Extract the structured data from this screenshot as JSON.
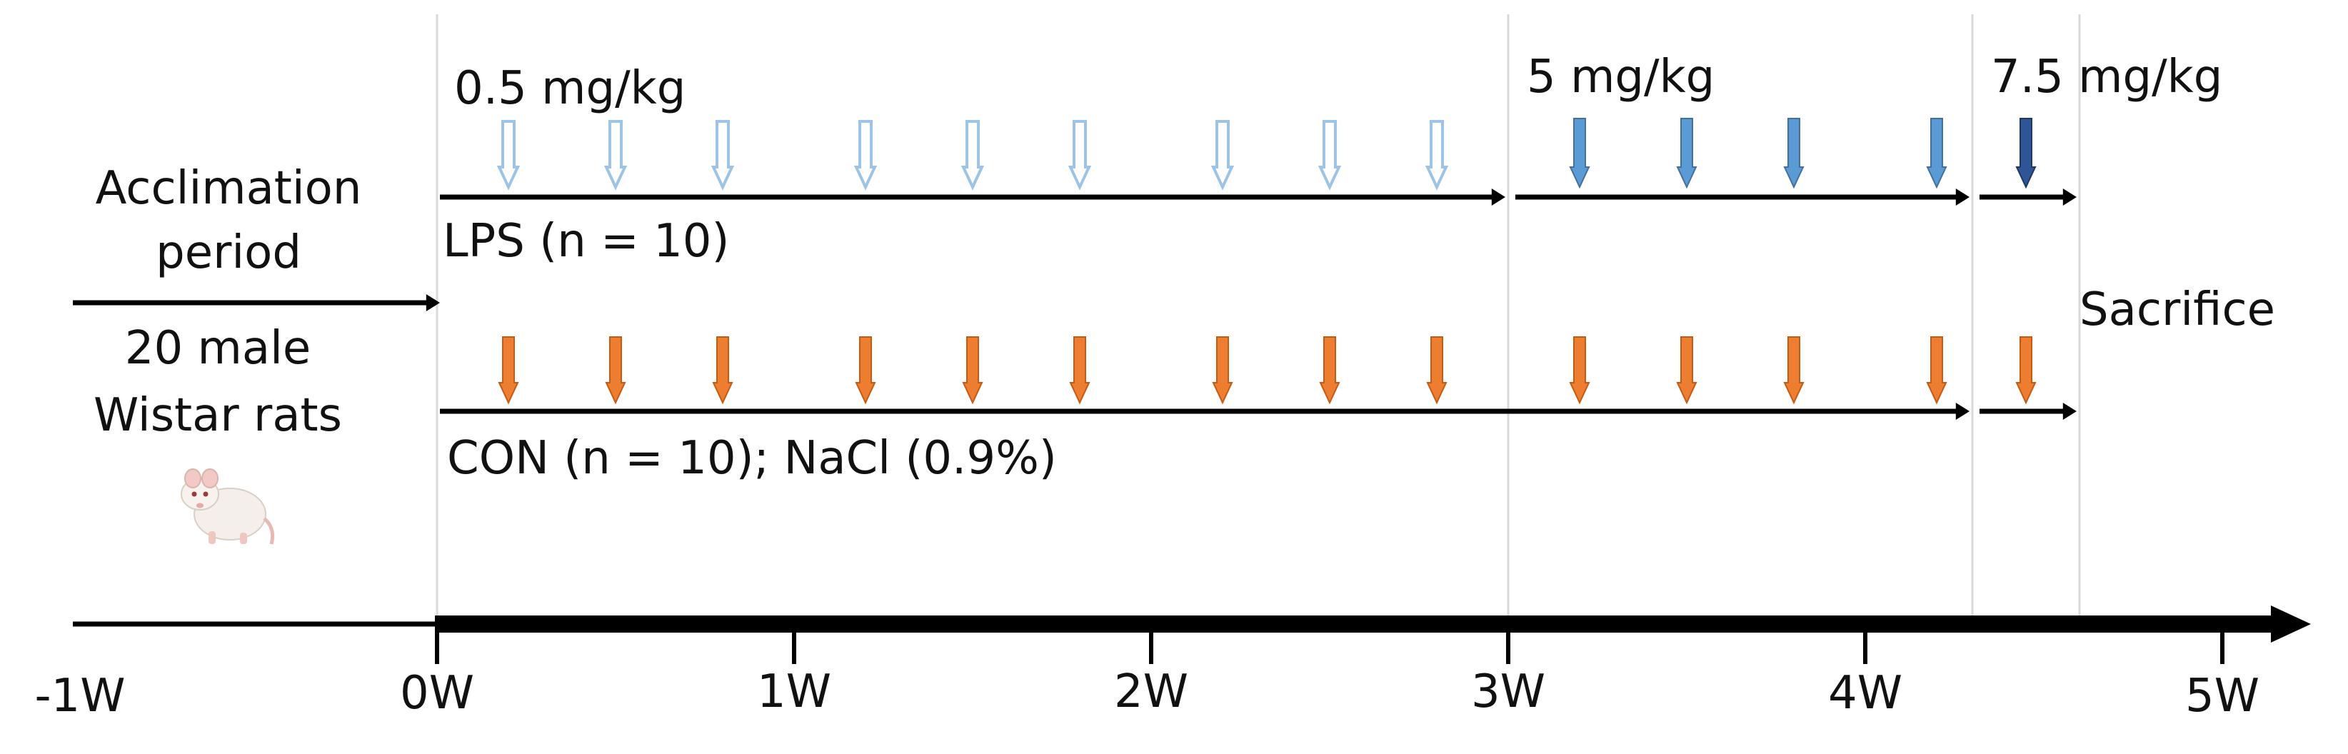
{
  "doses": {
    "low": "0.5 mg/kg",
    "mid": "5 mg/kg",
    "high": "7.5 mg/kg"
  },
  "labels": {
    "acclimation": "Acclimation period",
    "acclimation_line1": "Acclimation",
    "acclimation_line2": "period",
    "animals_line1": "20 male",
    "animals_line2": "Wistar rats",
    "lps_group": "LPS (n = 10)",
    "con_group": "CON (n = 10); NaCl (0.9%)",
    "sacrifice": "Sacrifice"
  },
  "axis": {
    "ticks": [
      "-1W",
      "0W",
      "1W",
      "2W",
      "3W",
      "4W",
      "5W"
    ]
  },
  "colors": {
    "lps_low": "#9dc3e6",
    "lps_mid": "#5b9bd5",
    "lps_high": "#2f5597",
    "con": "#ed7d31",
    "line": "#000000",
    "guide": "#d9d9d9"
  },
  "icons": {
    "rat": "rat-photo-icon"
  },
  "chart_data": {
    "type": "timeline",
    "unit": "week",
    "x_range": [
      -1,
      5
    ],
    "acclimation_period": [
      -1,
      0
    ],
    "dose_phases": [
      {
        "dose": "0.5 mg/kg",
        "start": 0,
        "end": 3
      },
      {
        "dose": "5 mg/kg",
        "start": 3,
        "end": 4.3
      },
      {
        "dose": "7.5 mg/kg",
        "start": 4.3,
        "end": 4.6
      }
    ],
    "lps_injections": [
      {
        "week": 0.2,
        "dose": "0.5 mg/kg"
      },
      {
        "week": 0.5,
        "dose": "0.5 mg/kg"
      },
      {
        "week": 0.8,
        "dose": "0.5 mg/kg"
      },
      {
        "week": 1.2,
        "dose": "0.5 mg/kg"
      },
      {
        "week": 1.5,
        "dose": "0.5 mg/kg"
      },
      {
        "week": 1.8,
        "dose": "0.5 mg/kg"
      },
      {
        "week": 2.2,
        "dose": "0.5 mg/kg"
      },
      {
        "week": 2.5,
        "dose": "0.5 mg/kg"
      },
      {
        "week": 2.8,
        "dose": "0.5 mg/kg"
      },
      {
        "week": 3.2,
        "dose": "5 mg/kg"
      },
      {
        "week": 3.5,
        "dose": "5 mg/kg"
      },
      {
        "week": 3.8,
        "dose": "5 mg/kg"
      },
      {
        "week": 4.2,
        "dose": "5 mg/kg"
      },
      {
        "week": 4.45,
        "dose": "7.5 mg/kg"
      }
    ],
    "con_injections": [
      0.2,
      0.5,
      0.8,
      1.2,
      1.5,
      1.8,
      2.2,
      2.5,
      2.8,
      3.2,
      3.5,
      3.8,
      4.2,
      4.45
    ],
    "sacrifice_week": 4.6
  }
}
